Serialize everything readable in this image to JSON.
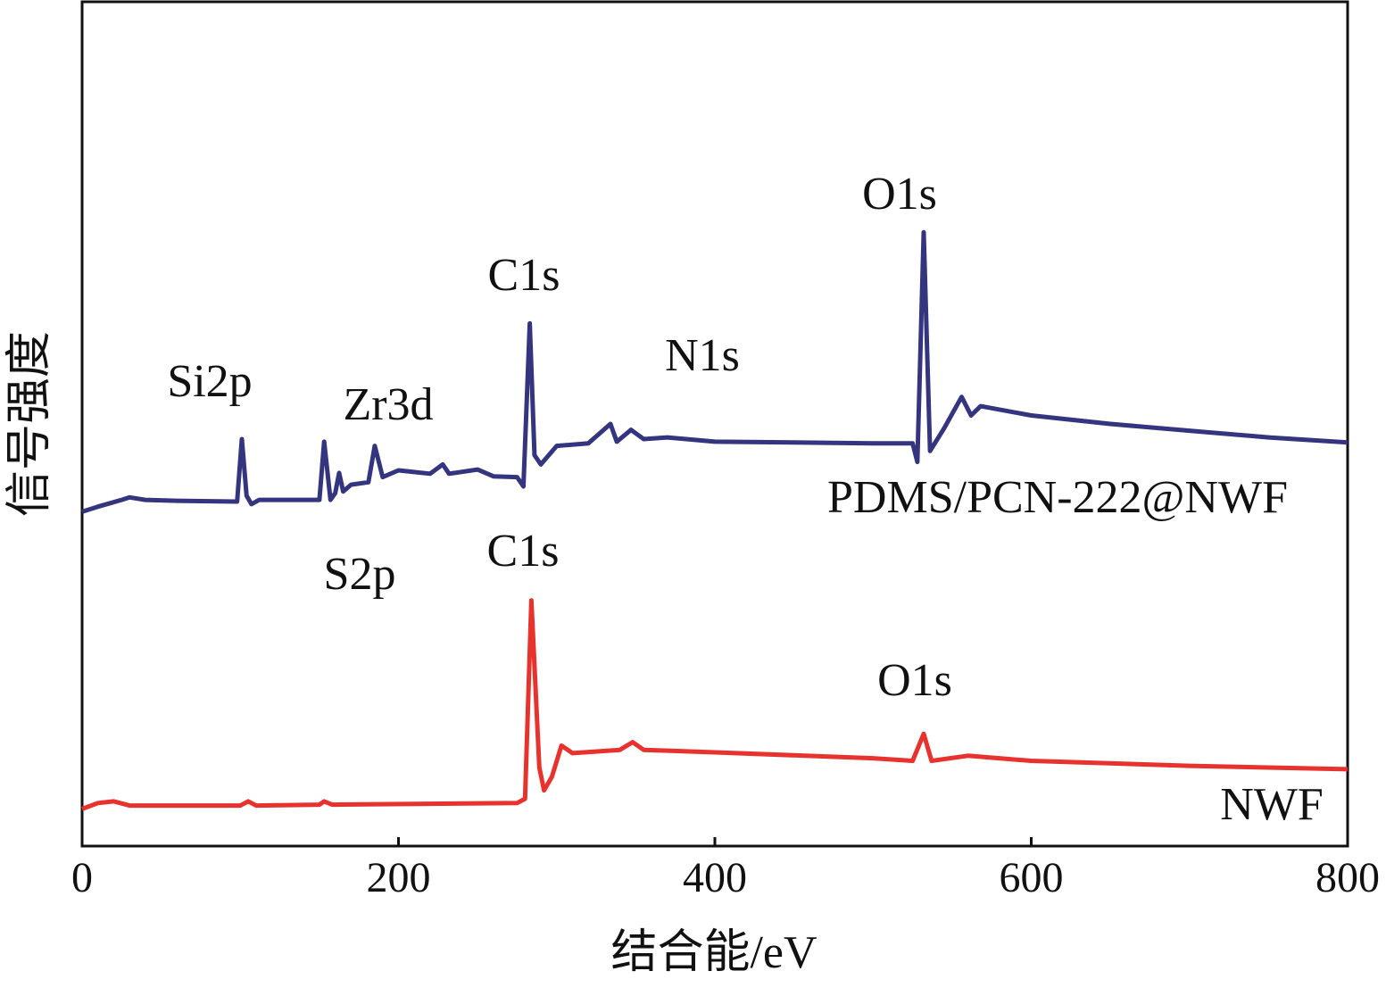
{
  "chart_data": {
    "type": "line",
    "x_label": "结合能/eV",
    "y_label": "信号强度",
    "xlim": [
      0,
      800
    ],
    "xticks": [
      0,
      200,
      400,
      600,
      800
    ],
    "ylim": [
      0,
      100
    ],
    "annotations": [
      "Si2p",
      "Zr3d",
      "C1s",
      "N1s",
      "O1s",
      "S2p",
      "C1s",
      "O1s"
    ],
    "series": [
      {
        "name": "PDMS/PCN-222@NWF",
        "color": "#34347f",
        "x": [
          0,
          10,
          25,
          30,
          40,
          60,
          98,
          101,
          104,
          107,
          112,
          150,
          153,
          157,
          160,
          162.5,
          165,
          170,
          181,
          185,
          190,
          200,
          220,
          228,
          232,
          250,
          260,
          275,
          279,
          283,
          286,
          290,
          300,
          320,
          334,
          338,
          347,
          355,
          370,
          400,
          450,
          500,
          525,
          528,
          532,
          536,
          545,
          556,
          562,
          568,
          600,
          650,
          700,
          750,
          800
        ],
        "values": [
          39.6,
          40.2,
          41.0,
          41.3,
          41.0,
          40.9,
          40.8,
          48.2,
          41.5,
          40.5,
          41.0,
          41.0,
          47.9,
          41.0,
          41.8,
          44.2,
          42.0,
          42.8,
          43.1,
          47.4,
          43.7,
          44.5,
          44.1,
          45.2,
          44.1,
          44.6,
          43.8,
          43.7,
          42.6,
          61.9,
          46.3,
          45.2,
          47.4,
          47.7,
          50.0,
          47.9,
          49.3,
          48.2,
          48.4,
          47.9,
          47.8,
          47.7,
          47.7,
          45.5,
          72.7,
          46.8,
          49.5,
          53.2,
          51.0,
          52.1,
          51.0,
          50.0,
          49.2,
          48.4,
          47.8
        ]
      },
      {
        "name": "NWF",
        "color": "#e8322e",
        "x": [
          0,
          10,
          20,
          30,
          100,
          105,
          110,
          150,
          153,
          158,
          275,
          280,
          284,
          289,
          292,
          297,
          303,
          310,
          340,
          348,
          355,
          400,
          500,
          525,
          532,
          537,
          560,
          600,
          700,
          800
        ],
        "values": [
          4.4,
          5.1,
          5.3,
          4.8,
          4.8,
          5.3,
          4.8,
          4.9,
          5.3,
          4.9,
          5.1,
          5.6,
          29.1,
          9.3,
          6.6,
          8.2,
          11.9,
          11.0,
          11.4,
          12.3,
          11.4,
          11.1,
          10.4,
          10.1,
          13.3,
          10.1,
          10.7,
          10.1,
          9.5,
          9.1
        ]
      }
    ]
  }
}
